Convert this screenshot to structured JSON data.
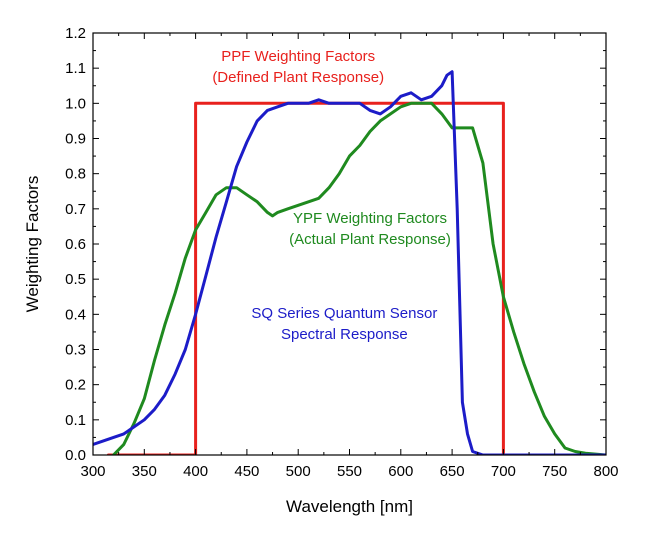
{
  "chart_data": {
    "type": "line",
    "title": "",
    "xlabel": "Wavelength [nm]",
    "ylabel": "Weighting Factors",
    "xlim": [
      300,
      800
    ],
    "ylim": [
      0,
      1.2
    ],
    "x_ticks": [
      300,
      350,
      400,
      450,
      500,
      550,
      600,
      650,
      700,
      750,
      800
    ],
    "y_ticks": [
      0.0,
      0.1,
      0.2,
      0.3,
      0.4,
      0.5,
      0.6,
      0.7,
      0.8,
      0.9,
      1.0,
      1.1,
      1.2
    ],
    "grid": false,
    "legend": "none",
    "series": [
      {
        "label": "ppf",
        "color": "#e8211d",
        "points": [
          [
            315,
            0
          ],
          [
            400,
            0
          ],
          [
            400,
            1.0
          ],
          [
            700,
            1.0
          ],
          [
            700,
            0
          ],
          [
            800,
            0
          ]
        ]
      },
      {
        "label": "ypf",
        "color": "#1f8a1f",
        "points": [
          [
            320,
            0
          ],
          [
            330,
            0.03
          ],
          [
            340,
            0.09
          ],
          [
            350,
            0.16
          ],
          [
            360,
            0.27
          ],
          [
            370,
            0.37
          ],
          [
            380,
            0.46
          ],
          [
            390,
            0.56
          ],
          [
            400,
            0.64
          ],
          [
            410,
            0.69
          ],
          [
            420,
            0.74
          ],
          [
            430,
            0.76
          ],
          [
            440,
            0.76
          ],
          [
            450,
            0.74
          ],
          [
            460,
            0.72
          ],
          [
            470,
            0.69
          ],
          [
            475,
            0.68
          ],
          [
            480,
            0.69
          ],
          [
            490,
            0.7
          ],
          [
            500,
            0.71
          ],
          [
            510,
            0.72
          ],
          [
            520,
            0.73
          ],
          [
            530,
            0.76
          ],
          [
            540,
            0.8
          ],
          [
            550,
            0.85
          ],
          [
            560,
            0.88
          ],
          [
            570,
            0.92
          ],
          [
            580,
            0.95
          ],
          [
            590,
            0.97
          ],
          [
            600,
            0.99
          ],
          [
            610,
            1.0
          ],
          [
            620,
            1.0
          ],
          [
            630,
            1.0
          ],
          [
            640,
            0.97
          ],
          [
            650,
            0.93
          ],
          [
            660,
            0.93
          ],
          [
            670,
            0.93
          ],
          [
            680,
            0.83
          ],
          [
            690,
            0.6
          ],
          [
            700,
            0.45
          ],
          [
            710,
            0.35
          ],
          [
            720,
            0.26
          ],
          [
            730,
            0.18
          ],
          [
            740,
            0.11
          ],
          [
            750,
            0.06
          ],
          [
            760,
            0.02
          ],
          [
            770,
            0.01
          ],
          [
            780,
            0.005
          ],
          [
            800,
            0
          ]
        ]
      },
      {
        "label": "sq",
        "color": "#1c1cc8",
        "points": [
          [
            300,
            0.03
          ],
          [
            310,
            0.04
          ],
          [
            320,
            0.05
          ],
          [
            330,
            0.06
          ],
          [
            340,
            0.08
          ],
          [
            350,
            0.1
          ],
          [
            360,
            0.13
          ],
          [
            370,
            0.17
          ],
          [
            380,
            0.23
          ],
          [
            390,
            0.3
          ],
          [
            400,
            0.4
          ],
          [
            410,
            0.51
          ],
          [
            420,
            0.62
          ],
          [
            430,
            0.72
          ],
          [
            440,
            0.82
          ],
          [
            450,
            0.89
          ],
          [
            460,
            0.95
          ],
          [
            470,
            0.98
          ],
          [
            480,
            0.99
          ],
          [
            490,
            1.0
          ],
          [
            500,
            1.0
          ],
          [
            510,
            1.0
          ],
          [
            520,
            1.01
          ],
          [
            530,
            1.0
          ],
          [
            540,
            1.0
          ],
          [
            550,
            1.0
          ],
          [
            560,
            1.0
          ],
          [
            570,
            0.98
          ],
          [
            580,
            0.97
          ],
          [
            590,
            0.99
          ],
          [
            600,
            1.02
          ],
          [
            610,
            1.03
          ],
          [
            620,
            1.01
          ],
          [
            630,
            1.02
          ],
          [
            640,
            1.05
          ],
          [
            645,
            1.08
          ],
          [
            650,
            1.09
          ],
          [
            655,
            0.7
          ],
          [
            660,
            0.15
          ],
          [
            665,
            0.06
          ],
          [
            670,
            0.01
          ],
          [
            680,
            0.0
          ],
          [
            800,
            0.0
          ]
        ]
      }
    ],
    "annotations": [
      {
        "text": "PPF Weighting Factors",
        "color": "#e8211d",
        "x": 500,
        "y": 1.12
      },
      {
        "text": "(Defined Plant Response)",
        "color": "#e8211d",
        "x": 500,
        "y": 1.06
      },
      {
        "text": "YPF Weighting Factors",
        "color": "#1f8a1f",
        "x": 570,
        "y": 0.66
      },
      {
        "text": "(Actual Plant Response)",
        "color": "#1f8a1f",
        "x": 570,
        "y": 0.6
      },
      {
        "text": "SQ Series Quantum Sensor",
        "color": "#1c1cc8",
        "x": 545,
        "y": 0.39
      },
      {
        "text": "Spectral Response",
        "color": "#1c1cc8",
        "x": 545,
        "y": 0.33
      }
    ]
  }
}
